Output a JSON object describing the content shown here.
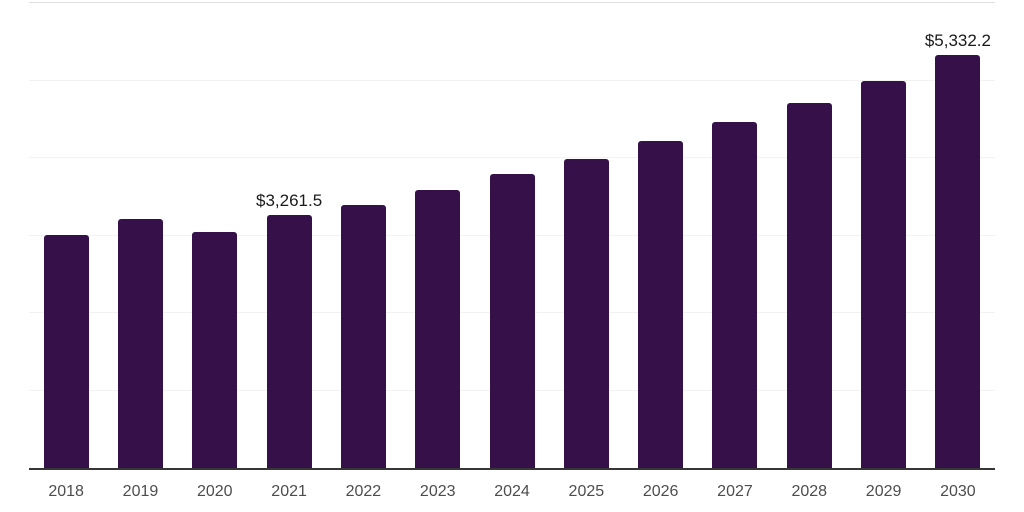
{
  "chart_data": {
    "type": "bar",
    "title": "",
    "xlabel": "",
    "ylabel": "",
    "categories": [
      "2018",
      "2019",
      "2020",
      "2021",
      "2022",
      "2023",
      "2024",
      "2025",
      "2026",
      "2027",
      "2028",
      "2029",
      "2030"
    ],
    "values": [
      3010,
      3220,
      3050,
      3261.5,
      3400,
      3590,
      3795,
      3985,
      4215,
      4460,
      4715,
      5000,
      5332.2
    ],
    "point_labels": [
      "",
      "",
      "",
      "$3,261.5",
      "",
      "",
      "",
      "",
      "",
      "",
      "",
      "",
      "$5,332.2"
    ],
    "ylim": [
      0,
      6000
    ],
    "grid_interval": 1000,
    "grid_visible": true,
    "legend_position": "none",
    "bar_color": "#351049",
    "axis_line_color": "#363636",
    "top_border_color": "#e0e0e0",
    "gridline_color": "#f2f2f2",
    "data_label_color": "#1a1a1a",
    "tick_label_color": "#4d4d4d",
    "background_color": "#ffffff"
  }
}
